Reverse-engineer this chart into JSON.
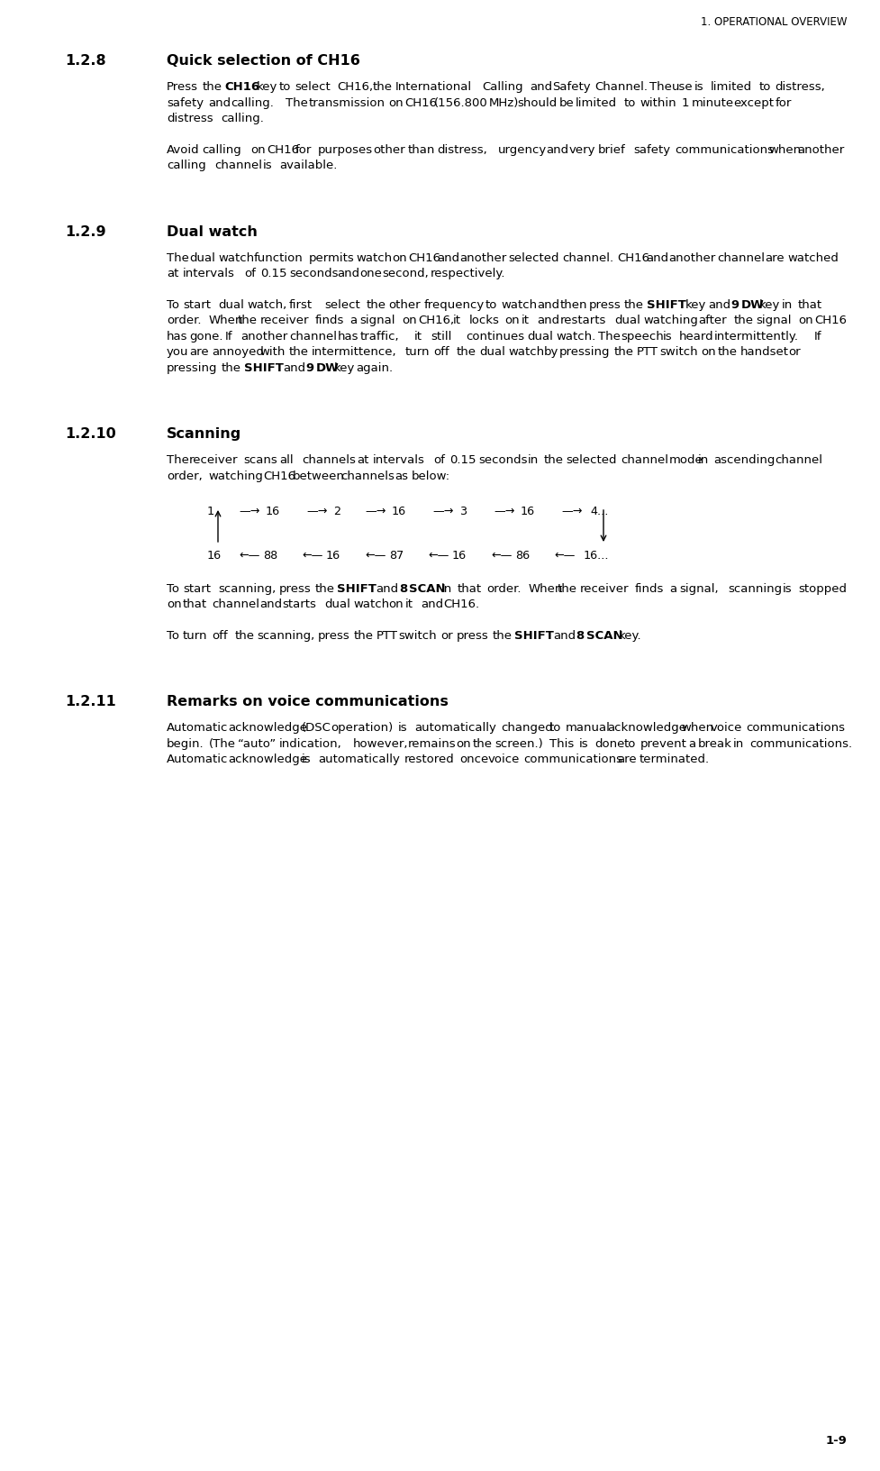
{
  "page_header": "1. OPERATIONAL OVERVIEW",
  "page_footer": "1-9",
  "background_color": "#ffffff",
  "text_color": "#000000",
  "figsize": [
    9.78,
    16.33
  ],
  "dpi": 100,
  "sections": [
    {
      "id": "1.2.8",
      "heading": "Quick selection of CH16",
      "paragraphs": [
        {
          "parts": [
            {
              "text": "Press the ",
              "bold": false
            },
            {
              "text": "CH16",
              "bold": true
            },
            {
              "text": " key to select CH16, the International Calling and Safety Channel. The use is limited to distress, safety and calling. The transmission on CH16 (156.800 MHz) should be limited to within 1 minute except for distress calling.",
              "bold": false
            }
          ]
        },
        {
          "parts": [
            {
              "text": "Avoid calling on CH16 for purposes other than distress, urgency and very brief safety communications when another calling channel is available.",
              "bold": false
            }
          ]
        }
      ]
    },
    {
      "id": "1.2.9",
      "heading": "Dual watch",
      "paragraphs": [
        {
          "parts": [
            {
              "text": "The dual watch function permits watch on CH16 and another selected channel. CH16 and another channel are watched at intervals of 0.15 seconds and one second, respectively.",
              "bold": false
            }
          ]
        },
        {
          "parts": [
            {
              "text": "To start dual watch, first select the other frequency to watch and then press the ",
              "bold": false
            },
            {
              "text": "SHIFT",
              "bold": true
            },
            {
              "text": " key and ",
              "bold": false
            },
            {
              "text": "9 DW",
              "bold": true
            },
            {
              "text": " key in that order. When the receiver finds a signal on CH16, it locks on it and restarts dual watching after the signal on CH16 has gone. If another channel has traffic, it still continues dual watch. The speech is heard intermittently. If you are annoyed with the intermittence, turn off the dual watch by pressing the PTT switch on the handset or pressing the ",
              "bold": false
            },
            {
              "text": "SHIFT",
              "bold": true
            },
            {
              "text": " and ",
              "bold": false
            },
            {
              "text": "9 DW",
              "bold": true
            },
            {
              "text": " key again.",
              "bold": false
            }
          ]
        }
      ]
    },
    {
      "id": "1.2.10",
      "heading": "Scanning",
      "paragraphs": [
        {
          "parts": [
            {
              "text": "The receiver scans all channels at intervals of 0.15 seconds in the selected channel mode in ascending channel order, watching CH16 between channels as below:",
              "bold": false
            }
          ]
        },
        {
          "type": "diagram"
        },
        {
          "parts": [
            {
              "text": "To start scanning, press the ",
              "bold": false
            },
            {
              "text": "SHIFT",
              "bold": true
            },
            {
              "text": " and ",
              "bold": false
            },
            {
              "text": "8 SCAN",
              "bold": true
            },
            {
              "text": " in that order. When the receiver finds a signal, scanning is stopped on that channel and starts dual watch on it and CH16.",
              "bold": false
            }
          ]
        },
        {
          "parts": [
            {
              "text": "To turn off the scanning, press the PTT switch or press the ",
              "bold": false
            },
            {
              "text": "SHIFT",
              "bold": true
            },
            {
              "text": " and ",
              "bold": false
            },
            {
              "text": "8 SCAN",
              "bold": true
            },
            {
              "text": " key.",
              "bold": false
            }
          ]
        }
      ]
    },
    {
      "id": "1.2.11",
      "heading": "Remarks on voice communications",
      "paragraphs": [
        {
          "parts": [
            {
              "text": "Automatic acknowledge (DSC operation) is automatically changed to manual acknowledge when voice communications begin. (The “auto” indication, however, remains on the screen.) This is done to prevent a break in communications. Automatic acknowledge is automatically restored once voice communications are terminated.",
              "bold": false
            }
          ]
        }
      ]
    }
  ]
}
